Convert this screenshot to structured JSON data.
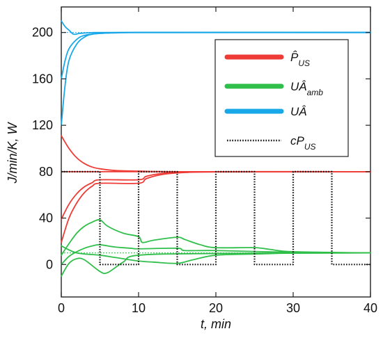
{
  "chart_data": {
    "type": "line",
    "xlabel": "t, min",
    "ylabel": "J/min/K, W",
    "xlim": [
      0,
      40
    ],
    "ylim": [
      -28,
      222
    ],
    "x_ticks": [
      0,
      10,
      20,
      30,
      40
    ],
    "y_ticks": [
      0,
      40,
      80,
      120,
      160,
      200
    ],
    "legend_position": "top-right",
    "colors": {
      "P_US": "#ef3b36",
      "UA_amb": "#2fbf4a",
      "UA": "#18a8e8",
      "cP_US": "#111111"
    },
    "legend": [
      {
        "id": "P_US",
        "main": "P̂",
        "sub": "US",
        "color": "#ef3b36",
        "style": "solid"
      },
      {
        "id": "UA_amb",
        "main": "UÂ",
        "sub": "amb",
        "color": "#2fbf4a",
        "style": "solid"
      },
      {
        "id": "UA",
        "main": "UÂ",
        "sub": "",
        "color": "#18a8e8",
        "style": "solid"
      },
      {
        "id": "cP_US",
        "main": "cP",
        "sub": "US",
        "color": "#111111",
        "style": "dotted"
      }
    ],
    "reference_lines": [
      {
        "y": 200,
        "color": "#18a8e8"
      },
      {
        "y": 80,
        "color": "#ef3b36"
      },
      {
        "y": 10,
        "color": "#2fbf4a"
      }
    ],
    "series": [
      {
        "group": "UA",
        "points": [
          [
            0,
            120
          ],
          [
            0.5,
            155
          ],
          [
            1,
            176
          ],
          [
            2,
            190
          ],
          [
            3,
            196
          ],
          [
            4,
            198.5
          ],
          [
            6,
            199.5
          ],
          [
            10,
            200
          ],
          [
            40,
            200
          ]
        ]
      },
      {
        "group": "UA",
        "points": [
          [
            0,
            160
          ],
          [
            0.5,
            176
          ],
          [
            1,
            186
          ],
          [
            2,
            194
          ],
          [
            3,
            197.5
          ],
          [
            5,
            199.2
          ],
          [
            8,
            199.8
          ],
          [
            12,
            200
          ],
          [
            40,
            200
          ]
        ]
      },
      {
        "group": "UA",
        "points": [
          [
            0,
            210
          ],
          [
            0.5,
            205
          ],
          [
            1,
            202
          ],
          [
            1.6,
            198.5
          ],
          [
            2.4,
            199.2
          ],
          [
            4,
            199.8
          ],
          [
            8,
            200
          ],
          [
            40,
            200
          ]
        ]
      },
      {
        "group": "P_US",
        "points": [
          [
            0,
            111
          ],
          [
            1,
            100
          ],
          [
            2,
            92
          ],
          [
            3,
            87
          ],
          [
            4,
            84
          ],
          [
            5,
            82.5
          ],
          [
            7,
            81
          ],
          [
            10,
            80.5
          ],
          [
            15,
            80
          ],
          [
            40,
            80
          ]
        ]
      },
      {
        "group": "P_US",
        "points": [
          [
            0,
            39
          ],
          [
            1,
            52
          ],
          [
            2,
            61
          ],
          [
            3,
            67
          ],
          [
            4,
            70.5
          ],
          [
            5,
            73
          ],
          [
            10,
            73
          ],
          [
            11,
            76
          ],
          [
            13,
            78.5
          ],
          [
            16,
            79.5
          ],
          [
            20,
            80
          ],
          [
            40,
            80
          ]
        ]
      },
      {
        "group": "P_US",
        "points": [
          [
            0,
            19
          ],
          [
            1,
            40
          ],
          [
            2,
            53
          ],
          [
            3,
            62
          ],
          [
            4,
            67.5
          ],
          [
            5,
            70
          ],
          [
            10,
            70
          ],
          [
            11,
            74
          ],
          [
            13,
            77.5
          ],
          [
            16,
            79.3
          ],
          [
            20,
            79.8
          ],
          [
            40,
            80
          ]
        ]
      },
      {
        "group": "P_US",
        "points": [
          [
            0,
            80
          ],
          [
            5,
            80
          ],
          [
            10,
            80
          ],
          [
            40,
            80
          ]
        ]
      },
      {
        "group": "UA_amb",
        "points": [
          [
            0,
            8
          ],
          [
            1,
            18
          ],
          [
            2,
            27
          ],
          [
            3,
            33
          ],
          [
            4,
            36.5
          ],
          [
            5,
            38.5
          ],
          [
            6,
            33
          ],
          [
            8,
            27
          ],
          [
            10,
            24
          ],
          [
            10.5,
            19
          ],
          [
            12,
            21
          ],
          [
            15,
            23.5
          ],
          [
            16,
            21.5
          ],
          [
            18,
            17
          ],
          [
            20,
            14.5
          ],
          [
            25,
            14.5
          ],
          [
            27,
            13
          ],
          [
            30,
            11
          ],
          [
            40,
            10
          ]
        ]
      },
      {
        "group": "UA_amb",
        "points": [
          [
            0,
            0
          ],
          [
            1,
            7
          ],
          [
            2,
            11
          ],
          [
            3,
            14
          ],
          [
            4,
            16
          ],
          [
            5,
            17
          ],
          [
            7,
            15
          ],
          [
            9,
            14
          ],
          [
            10,
            13.5
          ],
          [
            15,
            14
          ],
          [
            16,
            12
          ],
          [
            20,
            12
          ],
          [
            30,
            10.5
          ],
          [
            40,
            10
          ]
        ]
      },
      {
        "group": "UA_amb",
        "points": [
          [
            0,
            16
          ],
          [
            2,
            10
          ],
          [
            5,
            8
          ],
          [
            7,
            6
          ],
          [
            10,
            3
          ],
          [
            12,
            2
          ],
          [
            15,
            1
          ],
          [
            17,
            4
          ],
          [
            20,
            8
          ],
          [
            25,
            9
          ],
          [
            30,
            9.8
          ],
          [
            40,
            10
          ]
        ]
      },
      {
        "group": "UA_amb",
        "points": [
          [
            0,
            -10
          ],
          [
            1,
            1
          ],
          [
            2,
            5
          ],
          [
            3,
            4
          ],
          [
            5,
            -6
          ],
          [
            6,
            -7
          ],
          [
            8,
            2
          ],
          [
            10,
            8
          ],
          [
            20,
            9.5
          ],
          [
            40,
            10
          ]
        ]
      },
      {
        "group": "cP_US",
        "points": [
          [
            0,
            80
          ],
          [
            5,
            80
          ],
          [
            5,
            0
          ],
          [
            10,
            0
          ],
          [
            10,
            80
          ],
          [
            15,
            80
          ],
          [
            15,
            0
          ],
          [
            20,
            0
          ],
          [
            20,
            80
          ],
          [
            25,
            80
          ],
          [
            25,
            0
          ],
          [
            30,
            0
          ],
          [
            30,
            80
          ],
          [
            35,
            80
          ],
          [
            35,
            0
          ],
          [
            40,
            0
          ]
        ]
      }
    ]
  }
}
